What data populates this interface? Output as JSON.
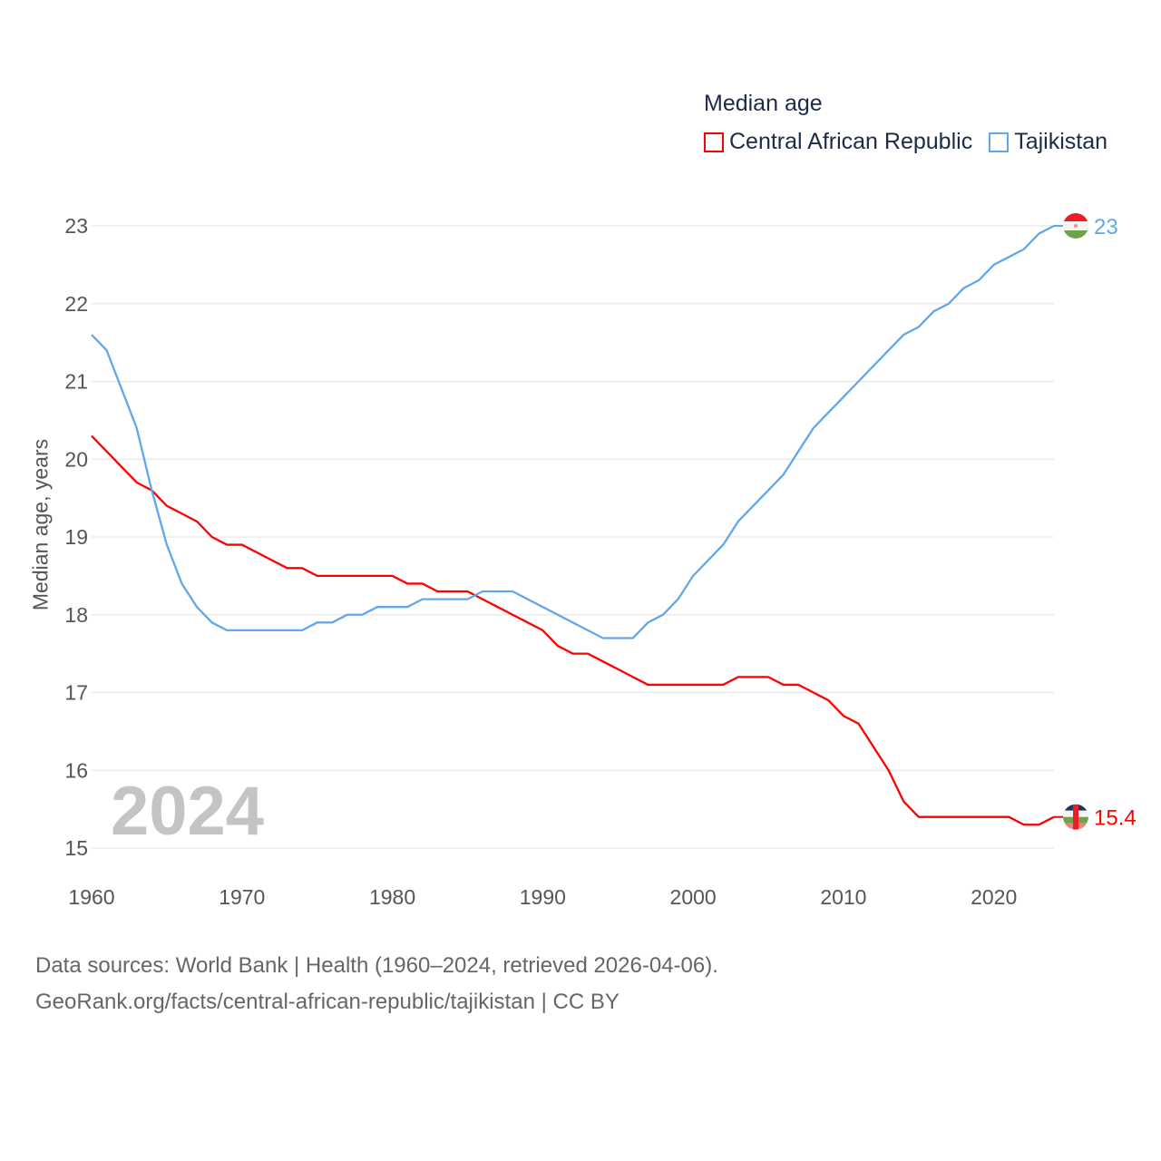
{
  "legend": {
    "title": "Median age",
    "items": [
      {
        "label": "Central African Republic",
        "color": "#ff0000"
      },
      {
        "label": "Tajikistan",
        "color": "#60a8ec"
      }
    ]
  },
  "year_watermark": "2024",
  "source": {
    "line1": "Data sources: World Bank | Health (1960–2024, retrieved 2026-04-06).",
    "line2": "GeoRank.org/facts/central-african-republic/tajikistan | CC BY"
  },
  "chart_data": {
    "type": "line",
    "title": "Median age",
    "xlabel": "",
    "ylabel": "Median age, years",
    "xlim": [
      1960,
      2024
    ],
    "ylim": [
      15,
      23
    ],
    "xticks": [
      1960,
      1970,
      1980,
      1990,
      2000,
      2010,
      2020
    ],
    "yticks": [
      15,
      16,
      17,
      18,
      19,
      20,
      21,
      22,
      23
    ],
    "grid": true,
    "legend_position": "top-right",
    "x": [
      1960,
      1961,
      1962,
      1963,
      1964,
      1965,
      1966,
      1967,
      1968,
      1969,
      1970,
      1971,
      1972,
      1973,
      1974,
      1975,
      1976,
      1977,
      1978,
      1979,
      1980,
      1981,
      1982,
      1983,
      1984,
      1985,
      1986,
      1987,
      1988,
      1989,
      1990,
      1991,
      1992,
      1993,
      1994,
      1995,
      1996,
      1997,
      1998,
      1999,
      2000,
      2001,
      2002,
      2003,
      2004,
      2005,
      2006,
      2007,
      2008,
      2009,
      2010,
      2011,
      2012,
      2013,
      2014,
      2015,
      2016,
      2017,
      2018,
      2019,
      2020,
      2021,
      2022,
      2023,
      2024
    ],
    "series": [
      {
        "name": "Central African Republic",
        "color": "#ff0000",
        "end_label": "15.4",
        "values": [
          20.3,
          20.1,
          19.9,
          19.7,
          19.6,
          19.4,
          19.3,
          19.2,
          19.0,
          18.9,
          18.9,
          18.8,
          18.7,
          18.6,
          18.6,
          18.5,
          18.5,
          18.5,
          18.5,
          18.5,
          18.5,
          18.4,
          18.4,
          18.3,
          18.3,
          18.3,
          18.2,
          18.1,
          18.0,
          17.9,
          17.8,
          17.6,
          17.5,
          17.5,
          17.4,
          17.3,
          17.2,
          17.1,
          17.1,
          17.1,
          17.1,
          17.1,
          17.1,
          17.2,
          17.2,
          17.2,
          17.1,
          17.1,
          17.0,
          16.9,
          16.7,
          16.6,
          16.3,
          16.0,
          15.6,
          15.4,
          15.4,
          15.4,
          15.4,
          15.4,
          15.4,
          15.4,
          15.3,
          15.3,
          15.4
        ]
      },
      {
        "name": "Tajikistan",
        "color": "#60a8ec",
        "end_label": "23",
        "values": [
          21.6,
          21.4,
          20.9,
          20.4,
          19.6,
          18.9,
          18.4,
          18.1,
          17.9,
          17.8,
          17.8,
          17.8,
          17.8,
          17.8,
          17.8,
          17.9,
          17.9,
          18.0,
          18.0,
          18.1,
          18.1,
          18.1,
          18.2,
          18.2,
          18.2,
          18.2,
          18.3,
          18.3,
          18.3,
          18.2,
          18.1,
          18.0,
          17.9,
          17.8,
          17.7,
          17.7,
          17.7,
          17.9,
          18.0,
          18.2,
          18.5,
          18.7,
          18.9,
          19.2,
          19.4,
          19.6,
          19.8,
          20.1,
          20.4,
          20.6,
          20.8,
          21.0,
          21.2,
          21.4,
          21.6,
          21.7,
          21.9,
          22.0,
          22.2,
          22.3,
          22.5,
          22.6,
          22.7,
          22.9,
          23.0
        ]
      }
    ]
  }
}
